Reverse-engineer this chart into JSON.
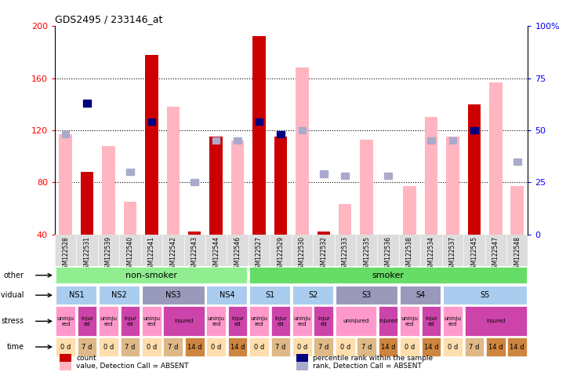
{
  "title": "GDS2495 / 233146_at",
  "samples": [
    "GSM122528",
    "GSM122531",
    "GSM122539",
    "GSM122540",
    "GSM122541",
    "GSM122542",
    "GSM122543",
    "GSM122544",
    "GSM122546",
    "GSM122527",
    "GSM122529",
    "GSM122530",
    "GSM122532",
    "GSM122533",
    "GSM122535",
    "GSM122536",
    "GSM122538",
    "GSM122534",
    "GSM122537",
    "GSM122545",
    "GSM122547",
    "GSM122548"
  ],
  "red_bars": [
    0,
    88,
    0,
    0,
    178,
    0,
    42,
    115,
    0,
    192,
    115,
    0,
    42,
    0,
    0,
    0,
    0,
    0,
    0,
    140,
    0,
    0
  ],
  "pink_bars": [
    117,
    0,
    108,
    65,
    0,
    138,
    0,
    0,
    112,
    0,
    0,
    168,
    0,
    63,
    113,
    0,
    77,
    130,
    115,
    0,
    157,
    77
  ],
  "blue_squares": [
    0,
    63,
    0,
    0,
    54,
    0,
    0,
    0,
    0,
    54,
    48,
    0,
    0,
    0,
    0,
    0,
    0,
    0,
    0,
    50,
    0,
    0
  ],
  "lavender_squares": [
    48,
    0,
    0,
    30,
    0,
    0,
    25,
    45,
    45,
    0,
    0,
    50,
    29,
    28,
    0,
    28,
    0,
    45,
    45,
    0,
    0,
    35
  ],
  "ylim_left": [
    40,
    200
  ],
  "ylim_right": [
    0,
    100
  ],
  "yticks_left": [
    40,
    80,
    120,
    160,
    200
  ],
  "yticks_right": [
    0,
    25,
    50,
    75,
    100
  ],
  "ytick_labels_right": [
    "0",
    "25",
    "50",
    "75",
    "100%"
  ],
  "dotted_lines": [
    80,
    120,
    160
  ],
  "bar_color_red": "#CC0000",
  "bar_color_pink": "#FFB6C1",
  "square_color_blue": "#000080",
  "square_color_lavender": "#AAAACC"
}
